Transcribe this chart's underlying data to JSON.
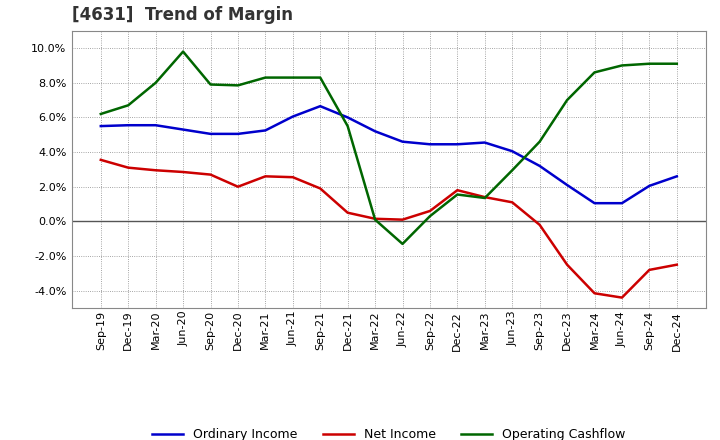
{
  "title": "[4631]  Trend of Margin",
  "x_labels": [
    "Sep-19",
    "Dec-19",
    "Mar-20",
    "Jun-20",
    "Sep-20",
    "Dec-20",
    "Mar-21",
    "Jun-21",
    "Sep-21",
    "Dec-21",
    "Mar-22",
    "Jun-22",
    "Sep-22",
    "Dec-22",
    "Mar-23",
    "Jun-23",
    "Sep-23",
    "Dec-23",
    "Mar-24",
    "Jun-24",
    "Sep-24",
    "Dec-24"
  ],
  "ordinary_income": [
    5.5,
    5.55,
    5.55,
    5.3,
    5.05,
    5.05,
    5.25,
    6.05,
    6.65,
    6.0,
    5.2,
    4.6,
    4.45,
    4.45,
    4.55,
    4.05,
    3.2,
    2.1,
    1.05,
    1.05,
    2.05,
    2.6
  ],
  "net_income": [
    3.55,
    3.1,
    2.95,
    2.85,
    2.7,
    2.0,
    2.6,
    2.55,
    1.9,
    0.5,
    0.15,
    0.1,
    0.6,
    1.8,
    1.4,
    1.1,
    -0.2,
    -2.5,
    -4.15,
    -4.4,
    -2.8,
    -2.5
  ],
  "operating_cashflow": [
    6.2,
    6.7,
    8.0,
    9.8,
    7.9,
    7.85,
    8.3,
    8.3,
    8.3,
    5.5,
    0.1,
    -1.3,
    0.3,
    1.55,
    1.35,
    2.95,
    4.6,
    7.0,
    8.6,
    9.0,
    9.1,
    9.1
  ],
  "ordinary_income_color": "#0000CC",
  "net_income_color": "#CC0000",
  "operating_cashflow_color": "#006600",
  "ylim": [
    -5.0,
    11.0
  ],
  "yticks": [
    -4.0,
    -2.0,
    0.0,
    2.0,
    4.0,
    6.0,
    8.0,
    10.0
  ],
  "background_color": "#FFFFFF",
  "plot_bg_color": "#FFFFFF",
  "grid_color": "#888888",
  "title_color": "#333333",
  "title_fontsize": 12,
  "legend_labels": [
    "Ordinary Income",
    "Net Income",
    "Operating Cashflow"
  ],
  "legend_fontsize": 9,
  "tick_fontsize": 8,
  "linewidth": 1.8
}
